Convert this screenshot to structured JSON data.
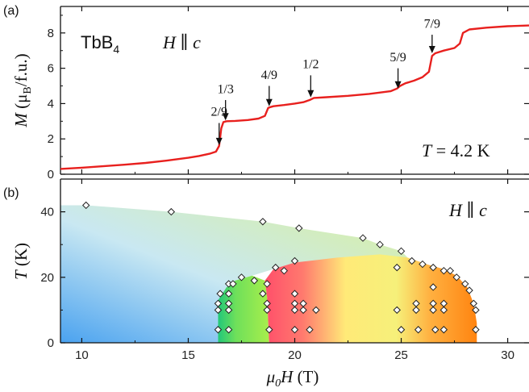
{
  "chart_data": [
    {
      "type": "line",
      "panel_label": "(a)",
      "material": {
        "base": "TbB",
        "subscript": "4"
      },
      "field_label": {
        "italic_H": "H",
        "parallel": " ∥ ",
        "italic_c": "c"
      },
      "temperature_label": {
        "italic_T": "T",
        "rest": " = 4.2 K"
      },
      "ylabel": {
        "M": "M",
        "open": " (μ",
        "sub": "B",
        "rest": "/f.u.)"
      },
      "xlim": [
        9,
        31
      ],
      "ylim": [
        0,
        9.5
      ],
      "yticks": [
        "0",
        "2",
        "4",
        "6",
        "8"
      ],
      "line_color": "#e8201e",
      "series": [
        {
          "x": [
            9,
            10,
            11,
            12,
            13,
            14,
            15,
            15.5,
            16,
            16.3,
            16.45,
            16.55,
            16.65,
            16.8,
            17.2,
            17.8,
            18.3,
            18.6,
            18.75,
            18.85,
            19.0,
            19.5,
            20.0,
            20.4,
            20.7,
            20.9,
            21.5,
            22.5,
            23.5,
            24.5,
            24.8,
            24.95,
            25.2,
            25.6,
            26.0,
            26.3,
            26.45,
            26.6,
            27.0,
            27.5,
            27.75,
            27.9,
            28.2,
            29.0,
            30.0,
            31.0
          ],
          "y": [
            0.3,
            0.37,
            0.45,
            0.54,
            0.64,
            0.77,
            0.93,
            1.03,
            1.16,
            1.28,
            1.6,
            2.6,
            2.95,
            3.0,
            3.02,
            3.07,
            3.15,
            3.3,
            3.75,
            3.8,
            3.85,
            3.92,
            4.0,
            4.08,
            4.2,
            4.32,
            4.36,
            4.44,
            4.55,
            4.7,
            4.85,
            5.0,
            5.15,
            5.3,
            5.5,
            5.8,
            6.7,
            6.85,
            7.0,
            7.15,
            7.4,
            8.0,
            8.2,
            8.3,
            8.38,
            8.42
          ]
        }
      ],
      "annotations": [
        {
          "text": "2/9",
          "x": 16.45,
          "y_text": 3.3,
          "y_tail": 2.9,
          "y_tip": 1.65
        },
        {
          "text": "1/3",
          "x": 16.75,
          "y_text": 4.6,
          "y_tail": 4.2,
          "y_tip": 3.05
        },
        {
          "text": "4/9",
          "x": 18.8,
          "y_text": 5.4,
          "y_tail": 5.0,
          "y_tip": 3.85
        },
        {
          "text": "1/2",
          "x": 20.75,
          "y_text": 6.0,
          "y_tail": 5.6,
          "y_tip": 4.35
        },
        {
          "text": "5/9",
          "x": 24.85,
          "y_text": 6.4,
          "y_tail": 6.0,
          "y_tip": 4.85
        },
        {
          "text": "7/9",
          "x": 26.45,
          "y_text": 8.3,
          "y_tail": 7.9,
          "y_tip": 6.85
        }
      ]
    },
    {
      "type": "scatter",
      "panel_label": "(b)",
      "field_label": {
        "italic_H": "H",
        "parallel": " ∥ ",
        "italic_c": "c"
      },
      "ylabel": {
        "T": "T",
        "rest": " (K)"
      },
      "xlabel": {
        "mu": "μ",
        "sub": "0",
        "H": "H",
        "rest": " (T)"
      },
      "xlim": [
        9,
        31
      ],
      "ylim": [
        0,
        50
      ],
      "xticks": [
        "10",
        "15",
        "20",
        "25",
        "30"
      ],
      "yticks": [
        "0",
        "20",
        "40"
      ],
      "marker": "diamond",
      "points": [
        {
          "x": 10.2,
          "y": 42
        },
        {
          "x": 14.2,
          "y": 40
        },
        {
          "x": 18.5,
          "y": 37
        },
        {
          "x": 20.2,
          "y": 35
        },
        {
          "x": 23.2,
          "y": 32
        },
        {
          "x": 24.0,
          "y": 30
        },
        {
          "x": 25.0,
          "y": 28
        },
        {
          "x": 25.5,
          "y": 25
        },
        {
          "x": 26.0,
          "y": 24
        },
        {
          "x": 26.5,
          "y": 23
        },
        {
          "x": 27.0,
          "y": 22
        },
        {
          "x": 27.3,
          "y": 22
        },
        {
          "x": 27.6,
          "y": 20
        },
        {
          "x": 28.0,
          "y": 18
        },
        {
          "x": 28.2,
          "y": 16
        },
        {
          "x": 28.4,
          "y": 12
        },
        {
          "x": 28.5,
          "y": 10
        },
        {
          "x": 28.5,
          "y": 4
        },
        {
          "x": 24.8,
          "y": 23
        },
        {
          "x": 24.8,
          "y": 10
        },
        {
          "x": 25.0,
          "y": 4
        },
        {
          "x": 25.7,
          "y": 12
        },
        {
          "x": 25.7,
          "y": 10
        },
        {
          "x": 25.8,
          "y": 4
        },
        {
          "x": 26.5,
          "y": 17
        },
        {
          "x": 26.5,
          "y": 12
        },
        {
          "x": 26.5,
          "y": 10
        },
        {
          "x": 26.6,
          "y": 4
        },
        {
          "x": 27.0,
          "y": 12
        },
        {
          "x": 27.0,
          "y": 10
        },
        {
          "x": 27.0,
          "y": 4
        },
        {
          "x": 16.4,
          "y": 12
        },
        {
          "x": 16.4,
          "y": 10
        },
        {
          "x": 16.4,
          "y": 4
        },
        {
          "x": 16.5,
          "y": 15
        },
        {
          "x": 16.9,
          "y": 18
        },
        {
          "x": 16.9,
          "y": 15
        },
        {
          "x": 16.9,
          "y": 12
        },
        {
          "x": 16.9,
          "y": 10
        },
        {
          "x": 16.9,
          "y": 4
        },
        {
          "x": 17.1,
          "y": 18
        },
        {
          "x": 17.5,
          "y": 20
        },
        {
          "x": 18.1,
          "y": 19
        },
        {
          "x": 18.5,
          "y": 15
        },
        {
          "x": 18.7,
          "y": 18
        },
        {
          "x": 18.7,
          "y": 12
        },
        {
          "x": 18.7,
          "y": 10
        },
        {
          "x": 18.8,
          "y": 4
        },
        {
          "x": 19.1,
          "y": 23
        },
        {
          "x": 19.5,
          "y": 22
        },
        {
          "x": 20.0,
          "y": 25
        },
        {
          "x": 20.0,
          "y": 15
        },
        {
          "x": 20.0,
          "y": 12
        },
        {
          "x": 20.0,
          "y": 10
        },
        {
          "x": 20.0,
          "y": 4
        },
        {
          "x": 20.4,
          "y": 12
        },
        {
          "x": 20.4,
          "y": 10
        },
        {
          "x": 20.7,
          "y": 4
        },
        {
          "x": 21.0,
          "y": 10
        }
      ],
      "regions": [
        {
          "name": "high-temp",
          "color_start": "#4aa2f0",
          "color_end": "#d8f0a0"
        },
        {
          "name": "green",
          "color": "#7fe84a"
        },
        {
          "name": "red-yellow-orange",
          "colors": [
            "#ff5a68",
            "#ffe870",
            "#ff8c1a"
          ]
        }
      ]
    }
  ]
}
